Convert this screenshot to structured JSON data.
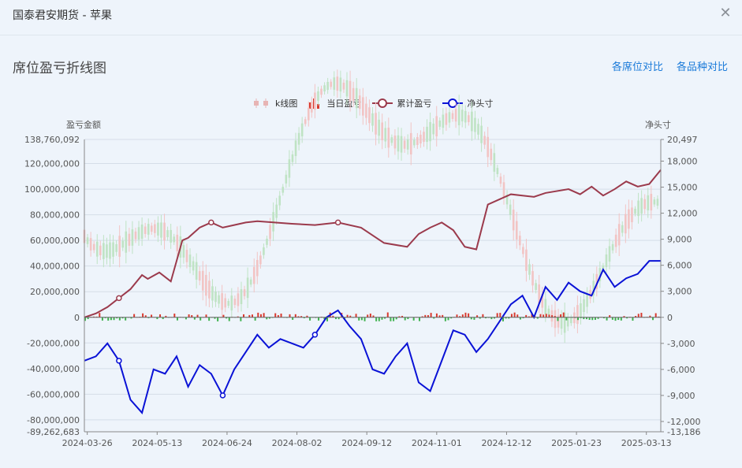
{
  "window": {
    "title": "国泰君安期货 - 苹果"
  },
  "section": {
    "title": "席位盈亏折线图"
  },
  "links": {
    "seat_compare": "各席位对比",
    "variety_compare": "各品种对比"
  },
  "legend": [
    {
      "label": "k线图",
      "icon": "candlestick-icon"
    },
    {
      "label": "当日盈亏",
      "icon": "bar-icon"
    },
    {
      "label": "累计盈亏",
      "icon": "line-circle-icon"
    },
    {
      "label": "净头寸",
      "icon": "line-circle-icon"
    }
  ],
  "colors": {
    "cumulative": "#9b3a4c",
    "net_position": "#0a12d6",
    "bar_up": "#d93a2f",
    "bar_down": "#3fb34f",
    "link": "#1a7ad9"
  },
  "chart_data": {
    "type": "line",
    "title": "",
    "y_left_label": "盈亏金额",
    "y_right_label": "净头寸",
    "x_ticks": [
      "2024-03-26",
      "2024-05-13",
      "2024-06-24",
      "2024-08-02",
      "2024-09-12",
      "2024-11-01",
      "2024-12-12",
      "2025-01-23",
      "2025-03-13"
    ],
    "y_left_ticks": [
      "138,760,092",
      "120,000,000",
      "100,000,000",
      "80,000,000",
      "60,000,000",
      "40,000,000",
      "20,000,000",
      "0",
      "-20,000,000",
      "-40,000,000",
      "-60,000,000",
      "-80,000,000",
      "-89,262,683"
    ],
    "y_right_ticks": [
      "20,497",
      "18,000",
      "15,000",
      "12,000",
      "9,000",
      "6,000",
      "3,000",
      "0",
      "-3,000",
      "-6,000",
      "-9,000",
      "-12,000",
      "-13,186"
    ],
    "y_left_range": [
      -89262683,
      138760092
    ],
    "y_right_range": [
      -13186,
      20497
    ],
    "series": [
      {
        "name": "累计盈亏",
        "x": [
          0,
          0.02,
          0.04,
          0.06,
          0.08,
          0.1,
          0.11,
          0.13,
          0.15,
          0.17,
          0.18,
          0.2,
          0.22,
          0.24,
          0.26,
          0.28,
          0.3,
          0.33,
          0.36,
          0.4,
          0.44,
          0.48,
          0.52,
          0.56,
          0.58,
          0.6,
          0.62,
          0.64,
          0.66,
          0.68,
          0.7,
          0.72,
          0.74,
          0.76,
          0.78,
          0.8,
          0.84,
          0.86,
          0.88,
          0.9,
          0.92,
          0.94,
          0.96,
          0.98,
          1.0
        ],
        "values": [
          0,
          3000000,
          8000000,
          15000000,
          22000000,
          33000000,
          30000000,
          35000000,
          28000000,
          60000000,
          62000000,
          70000000,
          74000000,
          70000000,
          72000000,
          74000000,
          75000000,
          74000000,
          73000000,
          72000000,
          74000000,
          70000000,
          58000000,
          55000000,
          65000000,
          70000000,
          74000000,
          68000000,
          55000000,
          53000000,
          88000000,
          92000000,
          96000000,
          95000000,
          94000000,
          97000000,
          100000000,
          96000000,
          102000000,
          95000000,
          100000000,
          106000000,
          102000000,
          104000000,
          115000000
        ]
      },
      {
        "name": "净头寸",
        "x": [
          0,
          0.02,
          0.04,
          0.06,
          0.08,
          0.1,
          0.12,
          0.14,
          0.16,
          0.18,
          0.2,
          0.22,
          0.24,
          0.26,
          0.28,
          0.3,
          0.32,
          0.34,
          0.36,
          0.38,
          0.4,
          0.42,
          0.44,
          0.46,
          0.48,
          0.5,
          0.52,
          0.54,
          0.56,
          0.58,
          0.6,
          0.62,
          0.64,
          0.66,
          0.68,
          0.7,
          0.72,
          0.74,
          0.76,
          0.78,
          0.8,
          0.82,
          0.84,
          0.86,
          0.88,
          0.9,
          0.92,
          0.94,
          0.96,
          0.98,
          1.0
        ],
        "values": [
          -5000,
          -4500,
          -3000,
          -5000,
          -9500,
          -11000,
          -6000,
          -6500,
          -4500,
          -8000,
          -5500,
          -6500,
          -9000,
          -6000,
          -4000,
          -2000,
          -3500,
          -2500,
          -3000,
          -3500,
          -2000,
          0,
          800,
          -1000,
          -2500,
          -6000,
          -6500,
          -4500,
          -3000,
          -7500,
          -8500,
          -5000,
          -1500,
          -2000,
          -4000,
          -2500,
          -500,
          1500,
          2500,
          0,
          3500,
          2000,
          4000,
          3000,
          2500,
          5500,
          3500,
          4500,
          5000,
          6500,
          6500
        ]
      }
    ]
  }
}
